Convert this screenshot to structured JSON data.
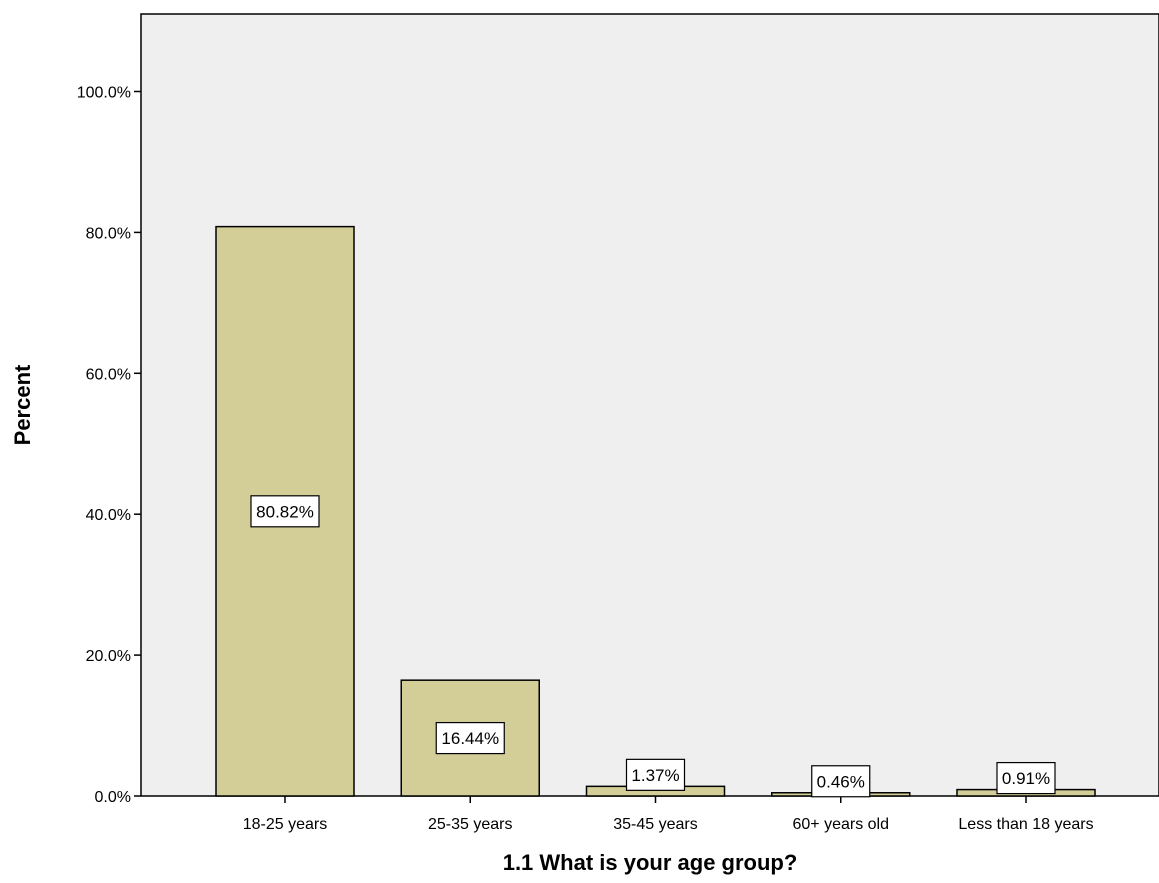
{
  "chart_data": {
    "type": "bar",
    "title": "",
    "xlabel": "1.1 What is your age group?",
    "ylabel": "Percent",
    "categories": [
      "18-25 years",
      "25-35 years",
      "35-45 years",
      "60+ years old",
      "Less than 18 years"
    ],
    "values": [
      80.82,
      16.44,
      1.37,
      0.46,
      0.91
    ],
    "data_labels": [
      "80.82%",
      "16.44%",
      "1.37%",
      "0.46%",
      "0.91%"
    ],
    "y_ticks": [
      0,
      20,
      40,
      60,
      80,
      100
    ],
    "y_tick_labels": [
      "0.0%",
      "20.0%",
      "40.0%",
      "60.0%",
      "80.0%",
      "100.0%"
    ],
    "ylim": [
      0,
      111
    ],
    "grid": false,
    "legend": "none",
    "colors": {
      "plot_background": "#efefef",
      "bar_fill": "#d3ce97",
      "bar_stroke": "#000000",
      "label_box_fill": "#ffffff"
    }
  }
}
